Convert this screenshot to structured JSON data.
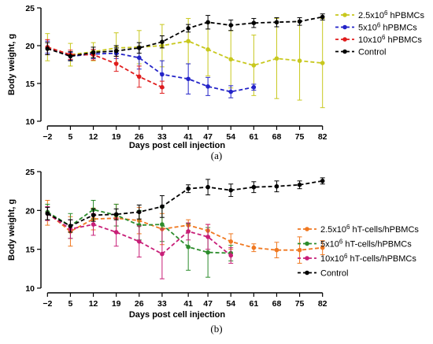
{
  "chart_data": [
    {
      "type": "line",
      "panel_label": "(a)",
      "xlabel": "Days post cell injection",
      "ylabel": "Body weight, g",
      "ylim": [
        10,
        25
      ],
      "y_ticks": [
        10,
        15,
        20,
        25
      ],
      "x_ticks": [
        -2,
        5,
        12,
        19,
        26,
        33,
        41,
        47,
        54,
        61,
        68,
        75,
        82
      ],
      "x_tick_labels": [
        "−2",
        "5",
        "12",
        "19",
        "26",
        "33",
        "41",
        "47",
        "54",
        "61",
        "68",
        "75",
        "82"
      ],
      "legend_position": "top-right",
      "series": [
        {
          "name": "2.5x10",
          "name_sup": "6",
          "name_suffix": " hPBMCs",
          "color": "#c8c81e",
          "x": [
            -2,
            5,
            12,
            19,
            26,
            33,
            41,
            47,
            54,
            61,
            68,
            75,
            82
          ],
          "y": [
            19.8,
            18.8,
            19.2,
            19.7,
            19.8,
            20.0,
            20.6,
            19.5,
            18.2,
            17.4,
            18.3,
            18.0,
            17.7
          ],
          "err": [
            1.8,
            1.5,
            1.2,
            2.0,
            2.2,
            2.8,
            3.0,
            3.5,
            3.8,
            4.0,
            5.3,
            5.2,
            5.9
          ]
        },
        {
          "name": "5x10",
          "name_sup": "6",
          "name_suffix": " hPBMCs",
          "color": "#2323c8",
          "x": [
            -2,
            5,
            12,
            19,
            26,
            33,
            41,
            47,
            54,
            61
          ],
          "y": [
            19.8,
            18.6,
            18.9,
            19.0,
            18.4,
            16.2,
            15.6,
            14.6,
            13.9,
            14.5
          ],
          "err": [
            0.8,
            0.5,
            0.6,
            0.7,
            1.5,
            1.8,
            2.0,
            1.2,
            0.8,
            0.4
          ]
        },
        {
          "name": "10x10",
          "name_sup": "6",
          "name_suffix": " hPBMCs",
          "color": "#e01c1c",
          "x": [
            -2,
            5,
            12,
            19,
            26,
            33
          ],
          "y": [
            19.8,
            18.8,
            18.8,
            17.6,
            15.9,
            14.5
          ],
          "err": [
            1.0,
            0.6,
            0.7,
            1.0,
            1.4,
            0.8
          ]
        },
        {
          "name": "Control",
          "name_sup": "",
          "name_suffix": "",
          "color": "#000000",
          "x": [
            -2,
            5,
            12,
            19,
            26,
            33,
            41,
            47,
            54,
            61,
            68,
            75,
            82
          ],
          "y": [
            19.6,
            18.6,
            19.1,
            19.3,
            19.7,
            20.5,
            22.3,
            23.1,
            22.7,
            23.0,
            23.1,
            23.2,
            23.8
          ],
          "err": [
            0.8,
            0.6,
            0.7,
            0.7,
            0.7,
            0.8,
            0.5,
            0.9,
            0.7,
            0.6,
            0.6,
            0.5,
            0.4
          ]
        }
      ]
    },
    {
      "type": "line",
      "panel_label": "(b)",
      "xlabel": "Days post cell injection",
      "ylabel": "Body weight, g",
      "ylim": [
        10,
        25
      ],
      "y_ticks": [
        10,
        15,
        20,
        25
      ],
      "x_ticks": [
        -2,
        5,
        12,
        19,
        26,
        33,
        41,
        47,
        54,
        61,
        68,
        75,
        82
      ],
      "x_tick_labels": [
        "−2",
        "5",
        "12",
        "19",
        "26",
        "33",
        "41",
        "47",
        "54",
        "61",
        "68",
        "75",
        "82"
      ],
      "legend_position": "right",
      "series": [
        {
          "name": "2.5x10",
          "name_sup": "6",
          "name_suffix": " hT-cells/hPBMCs",
          "color": "#f07820",
          "x": [
            -2,
            5,
            12,
            19,
            26,
            33,
            41,
            47,
            54,
            61,
            68,
            75,
            82
          ],
          "y": [
            19.7,
            17.3,
            18.9,
            19.0,
            18.7,
            17.6,
            18.1,
            17.4,
            16.0,
            15.2,
            14.9,
            14.9,
            15.2
          ],
          "err": [
            1.6,
            1.9,
            1.4,
            1.8,
            1.7,
            2.0,
            0.7,
            0.8,
            1.0,
            0.5,
            1.0,
            1.7,
            0.9
          ]
        },
        {
          "name": "5x10",
          "name_sup": "6",
          "name_suffix": " hT-cells/hPBMCs",
          "color": "#2c8c2c",
          "x": [
            -2,
            5,
            12,
            19,
            26,
            33,
            41,
            47,
            54
          ],
          "y": [
            19.8,
            18.0,
            20.1,
            19.4,
            18.1,
            18.2,
            15.3,
            14.6,
            14.5
          ],
          "err": [
            1.0,
            1.6,
            1.2,
            1.4,
            1.9,
            2.2,
            3.0,
            3.2,
            1.0
          ]
        },
        {
          "name": "10x10",
          "name_sup": "6",
          "name_suffix": " hT-cells/hPBMCs",
          "color": "#c81e78",
          "x": [
            -2,
            5,
            12,
            19,
            26,
            33,
            41,
            47,
            54
          ],
          "y": [
            19.6,
            17.6,
            18.2,
            17.2,
            16.0,
            14.4,
            17.3,
            16.6,
            14.2
          ],
          "err": [
            0.9,
            1.2,
            1.4,
            1.8,
            2.0,
            3.2,
            1.1,
            1.6,
            1.0
          ]
        },
        {
          "name": "Control",
          "name_sup": "",
          "name_suffix": "",
          "color": "#000000",
          "x": [
            -2,
            5,
            12,
            19,
            26,
            33,
            41,
            47,
            54,
            61,
            68,
            75,
            82
          ],
          "y": [
            19.6,
            18.0,
            19.4,
            19.5,
            19.8,
            20.5,
            22.8,
            23.0,
            22.6,
            23.0,
            23.1,
            23.3,
            23.8
          ],
          "err": [
            0.8,
            0.8,
            0.8,
            0.7,
            0.9,
            1.4,
            0.5,
            1.0,
            0.8,
            0.7,
            0.7,
            0.5,
            0.4
          ]
        }
      ]
    }
  ]
}
